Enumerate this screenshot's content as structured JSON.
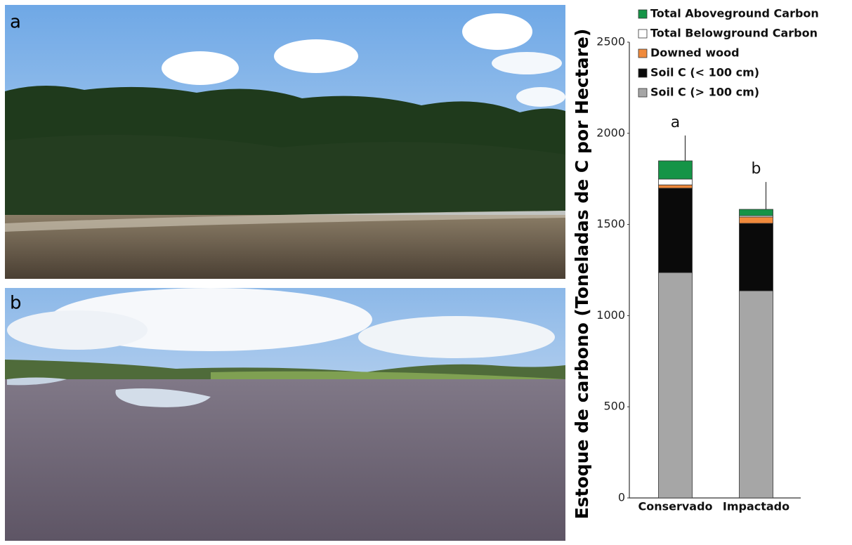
{
  "photo_panels": [
    {
      "label": "a"
    },
    {
      "label": "b"
    }
  ],
  "chart_data": {
    "type": "bar",
    "stacked": true,
    "ylabel": "Estoque de carbono (Toneladas de C por Hectare)",
    "categories": [
      "Conservado",
      "Impactado"
    ],
    "series": [
      {
        "name": "Soil C (> 100 cm)",
        "color": "#a6a6a6",
        "values": [
          1236,
          1136
        ]
      },
      {
        "name": "Soil C (< 100 cm)",
        "color": "#0a0a0a",
        "values": [
          463,
          370
        ]
      },
      {
        "name": "Downed wood",
        "color": "#f08a3c",
        "values": [
          18,
          35
        ]
      },
      {
        "name": "Total Belowground Carbon",
        "color": "#ffffff",
        "values": [
          32,
          7
        ]
      },
      {
        "name": "Total Aboveground Carbon",
        "color": "#159447",
        "values": [
          100,
          35
        ]
      }
    ],
    "errors": [
      139,
      150
    ],
    "annotations": [
      "a",
      "b"
    ],
    "ylim": [
      0,
      2500
    ],
    "yticks": [
      0,
      500,
      1000,
      1500,
      2000,
      2500
    ],
    "legend": "upper-right"
  }
}
